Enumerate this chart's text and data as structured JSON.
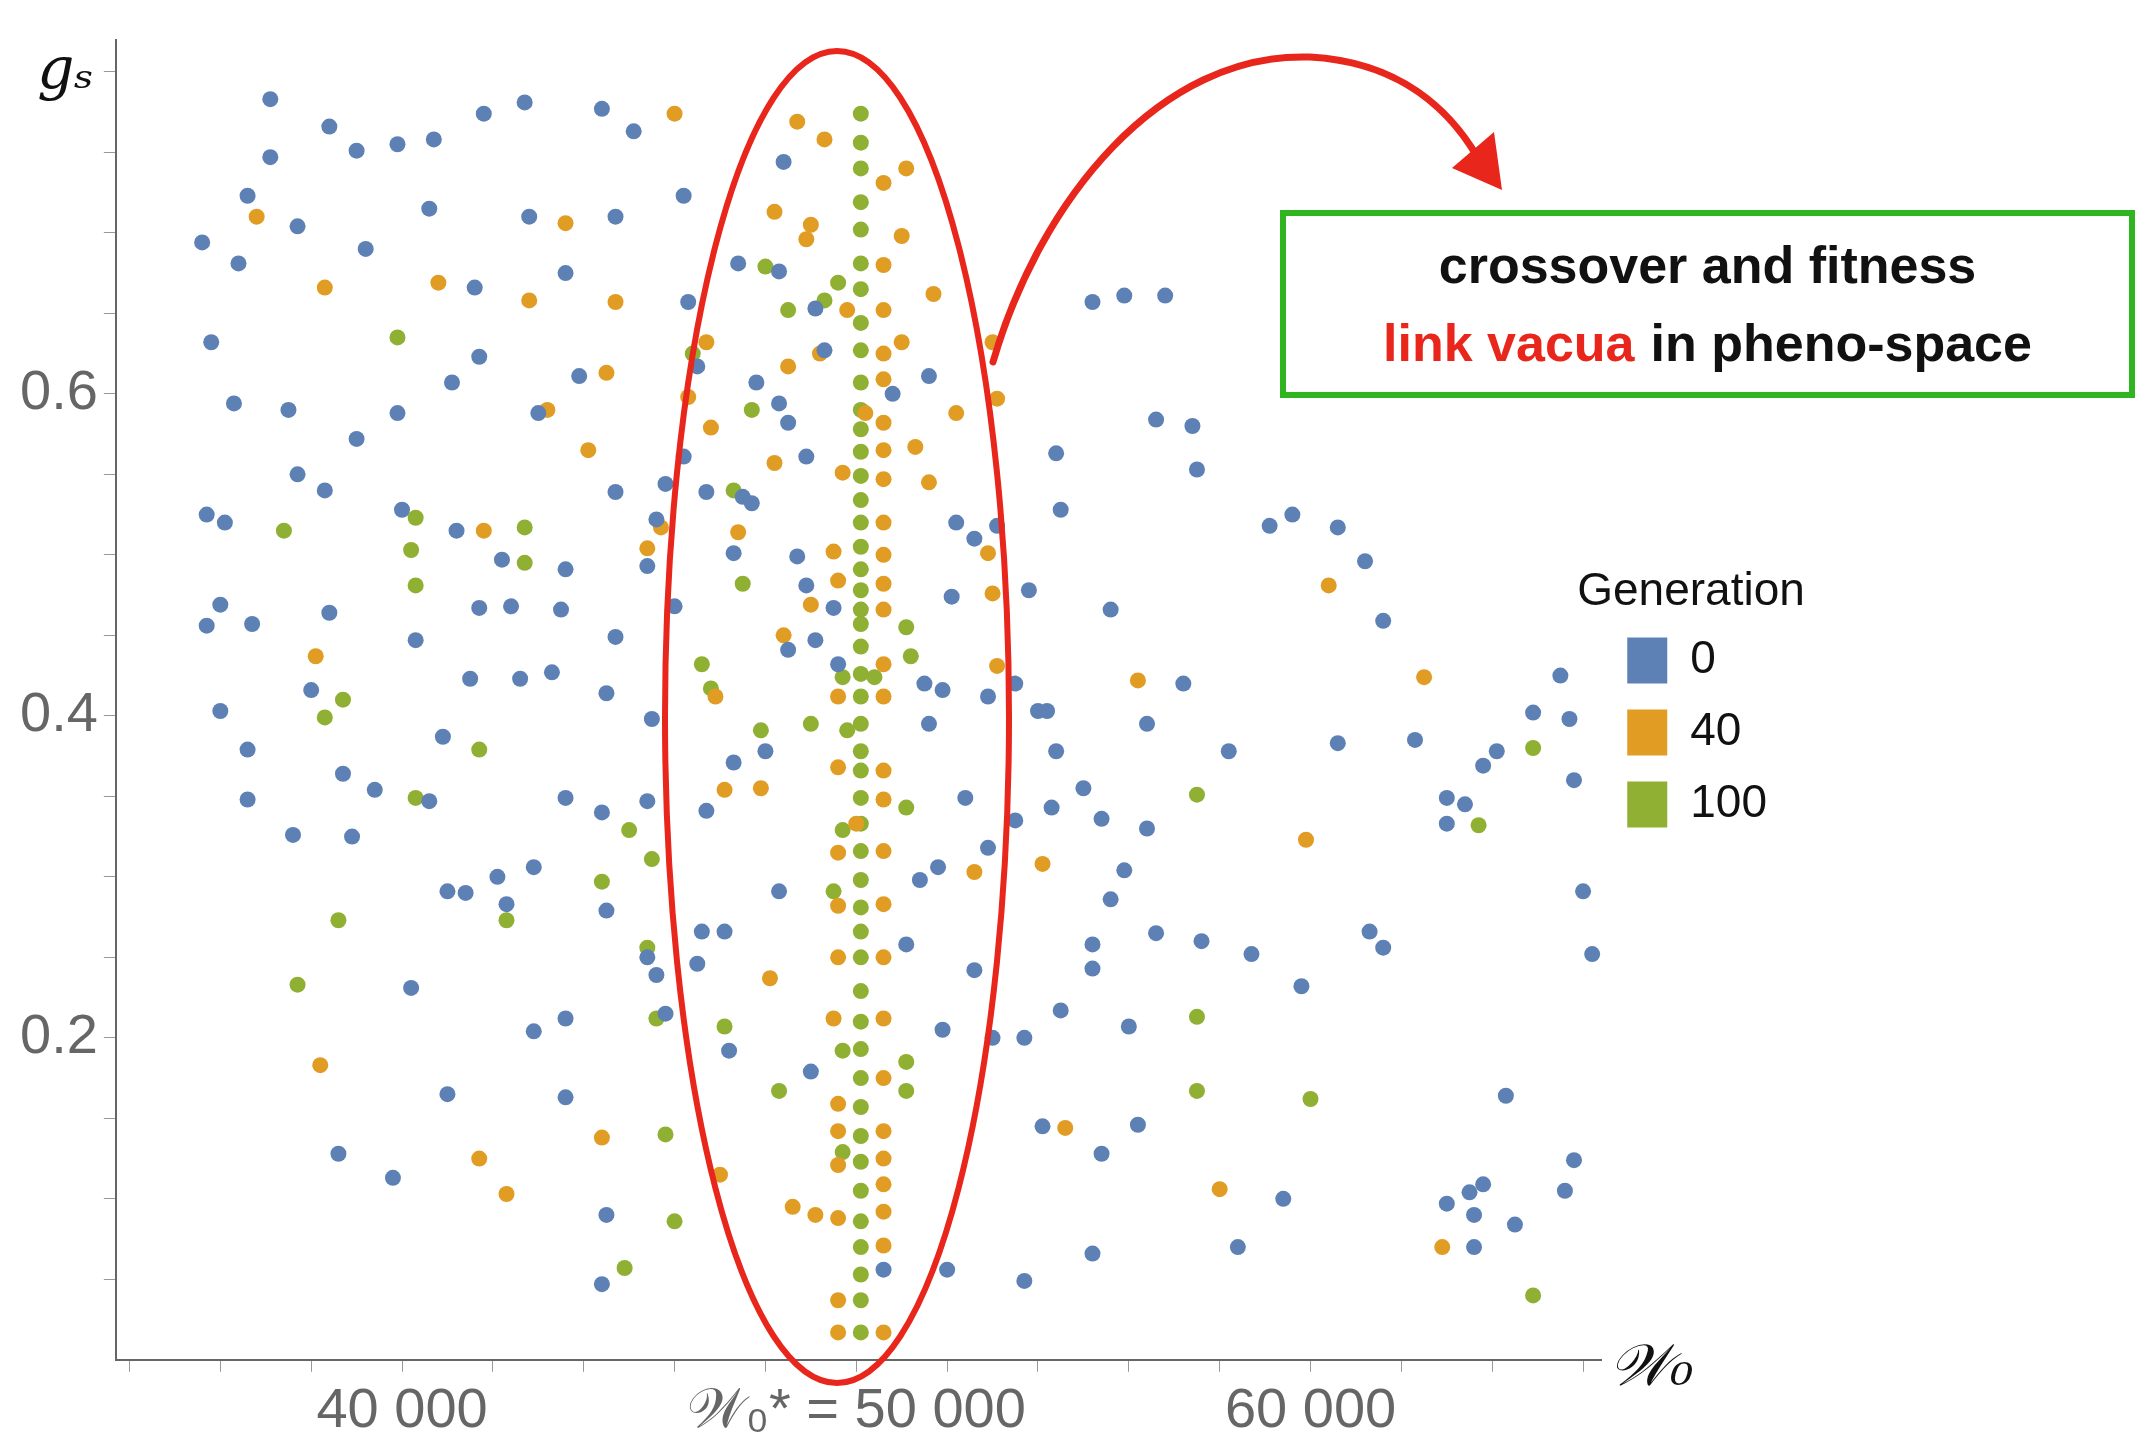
{
  "chart_data": {
    "type": "scatter",
    "xlabel": "𝒲₀",
    "ylabel": "gₛ",
    "legend_title": "Generation",
    "annotations": [
      "crossover and fitness",
      "link vacua",
      "in pheno-space"
    ],
    "xlim": [
      33700,
      66400
    ],
    "ylim": [
      0,
      0.82
    ],
    "xticks": [
      {
        "value": 34000,
        "label": null
      },
      {
        "value": 36000,
        "label": null
      },
      {
        "value": 38000,
        "label": null
      },
      {
        "value": 40000,
        "label": "40 000"
      },
      {
        "value": 42000,
        "label": null
      },
      {
        "value": 44000,
        "label": null
      },
      {
        "value": 46000,
        "label": null
      },
      {
        "value": 48000,
        "label": null
      },
      {
        "value": 50000,
        "label": "𝒲₀* = 50 000"
      },
      {
        "value": 52000,
        "label": null
      },
      {
        "value": 54000,
        "label": null
      },
      {
        "value": 56000,
        "label": null
      },
      {
        "value": 58000,
        "label": null
      },
      {
        "value": 60000,
        "label": "60 000"
      },
      {
        "value": 62000,
        "label": null
      },
      {
        "value": 64000,
        "label": null
      },
      {
        "value": 66000,
        "label": null
      }
    ],
    "yticks": [
      {
        "value": 0.05,
        "label": null
      },
      {
        "value": 0.1,
        "label": null
      },
      {
        "value": 0.15,
        "label": null
      },
      0.2,
      {
        "value": 0.25,
        "label": null
      },
      {
        "value": 0.3,
        "label": null
      },
      {
        "value": 0.35,
        "label": null
      },
      0.4,
      {
        "value": 0.45,
        "label": null
      },
      {
        "value": 0.5,
        "label": null
      },
      {
        "value": 0.55,
        "label": null
      },
      0.6,
      {
        "value": 0.65,
        "label": null
      },
      {
        "value": 0.7,
        "label": null
      },
      {
        "value": 0.75,
        "label": null
      },
      {
        "value": 0.8,
        "label": null
      }
    ],
    "legend": "right",
    "marker": "circle",
    "series": [
      {
        "name": "0",
        "color": "#5e81b5",
        "x": [
          35600,
          37100,
          38400,
          36600,
          37100,
          39000,
          39900,
          40700,
          41800,
          42700,
          44400,
          45100,
          46200,
          48400,
          35800,
          36400,
          37700,
          39200,
          40600,
          41600,
          42800,
          43600,
          44700,
          46300,
          47400,
          36300,
          37500,
          39000,
          39900,
          41100,
          41700,
          43000,
          43900,
          44700,
          45800,
          47500,
          35700,
          36100,
          37700,
          38300,
          40000,
          41200,
          42200,
          43600,
          45400,
          46700,
          35700,
          36000,
          36700,
          38400,
          40300,
          41700,
          42400,
          43500,
          44700,
          46000,
          36000,
          36600,
          38000,
          38700,
          39400,
          40900,
          41500,
          42600,
          43300,
          44500,
          45500,
          36600,
          37600,
          38900,
          40600,
          41000,
          42100,
          42900,
          43600,
          44400,
          45400,
          46700,
          40200,
          41400,
          42300,
          42900,
          43600,
          44500,
          45400,
          46600,
          38600,
          39800,
          41000,
          43600,
          44500,
          44400,
          45600,
          48500,
          48900,
          49500,
          51600,
          52600,
          53500,
          54400,
          55600,
          56400,
          57200,
          57500,
          58200,
          59100,
          59600,
          60600,
          61200,
          61600,
          62300,
          63000,
          63800,
          64900,
          65700,
          65800,
          66000,
          66200,
          65500,
          64100,
          63400,
          63000,
          60600,
          61300,
          61600,
          59800,
          58700,
          57600,
          56600,
          56000,
          55200,
          54500,
          53700,
          53000,
          51900,
          52600,
          51100,
          51400,
          51800,
          52400,
          52900,
          53500,
          54200,
          54400,
          55000,
          55400,
          55900,
          56400,
          55600,
          55200,
          55200,
          54100,
          55400,
          56200,
          58400,
          59400,
          63000,
          63500,
          63800,
          64300,
          63600,
          63600,
          65600,
          65800,
          64500,
          53700,
          52000,
          50600,
          54000,
          54300,
          56600,
          57400,
          56800,
          55900,
          55200,
          54500,
          52900,
          51900,
          51500,
          53800,
          52100,
          49600,
          49100,
          48000,
          47300,
          48300,
          47100,
          46500,
          45800,
          47200,
          49000,
          48300,
          47800,
          46500,
          46200,
          47700,
          48700,
          47300,
          45600,
          48300,
          49100,
          49300,
          48500,
          48900,
          50800,
          51600,
          52200,
          53100
        ],
        "values": [
          0.694,
          0.783,
          0.766,
          0.723,
          0.747,
          0.751,
          0.755,
          0.758,
          0.774,
          0.781,
          0.777,
          0.763,
          0.723,
          0.744,
          0.632,
          0.681,
          0.704,
          0.69,
          0.715,
          0.666,
          0.71,
          0.675,
          0.71,
          0.657,
          0.681,
          0.594,
          0.59,
          0.572,
          0.588,
          0.607,
          0.623,
          0.588,
          0.611,
          0.539,
          0.544,
          0.536,
          0.525,
          0.52,
          0.55,
          0.54,
          0.528,
          0.515,
          0.497,
          0.491,
          0.493,
          0.539,
          0.456,
          0.469,
          0.457,
          0.464,
          0.447,
          0.467,
          0.468,
          0.466,
          0.449,
          0.468,
          0.403,
          0.379,
          0.416,
          0.364,
          0.354,
          0.387,
          0.423,
          0.423,
          0.427,
          0.414,
          0.398,
          0.348,
          0.326,
          0.325,
          0.347,
          0.291,
          0.3,
          0.306,
          0.349,
          0.34,
          0.347,
          0.341,
          0.231,
          0.29,
          0.283,
          0.204,
          0.212,
          0.279,
          0.25,
          0.266,
          0.128,
          0.113,
          0.165,
          0.163,
          0.09,
          0.047,
          0.239,
          0.441,
          0.481,
          0.467,
          0.395,
          0.51,
          0.42,
          0.563,
          0.466,
          0.395,
          0.42,
          0.553,
          0.378,
          0.518,
          0.525,
          0.517,
          0.496,
          0.459,
          0.385,
          0.349,
          0.369,
          0.402,
          0.398,
          0.36,
          0.291,
          0.252,
          0.425,
          0.378,
          0.345,
          0.333,
          0.383,
          0.266,
          0.256,
          0.232,
          0.252,
          0.26,
          0.265,
          0.207,
          0.243,
          0.217,
          0.2,
          0.2,
          0.205,
          0.242,
          0.258,
          0.298,
          0.306,
          0.349,
          0.318,
          0.335,
          0.403,
          0.378,
          0.355,
          0.336,
          0.304,
          0.33,
          0.286,
          0.258,
          0.066,
          0.145,
          0.128,
          0.146,
          0.07,
          0.1,
          0.097,
          0.104,
          0.109,
          0.164,
          0.07,
          0.09,
          0.105,
          0.124,
          0.084,
          0.049,
          0.056,
          0.056,
          0.403,
          0.343,
          0.584,
          0.58,
          0.661,
          0.661,
          0.657,
          0.528,
          0.412,
          0.416,
          0.42,
          0.478,
          0.474,
          0.432,
          0.447,
          0.378,
          0.371,
          0.291,
          0.266,
          0.246,
          0.215,
          0.192,
          0.179,
          0.594,
          0.607,
          0.617,
          0.561,
          0.532,
          0.499,
          0.501,
          0.522,
          0.676,
          0.653,
          0.627,
          0.582,
          0.561,
          0.6,
          0.611,
          0.52,
          0.518
        ]
      },
      {
        "name": "40",
        "color": "#e19c24",
        "x": [
          46000,
          48700,
          49300,
          51100,
          36800,
          38300,
          43600,
          44700,
          40800,
          42800,
          48200,
          49000,
          48900,
          50600,
          51000,
          51700,
          50600,
          49800,
          50600,
          51000,
          53000,
          53100,
          52200,
          50600,
          48500,
          49200,
          50600,
          50200,
          50600,
          51300,
          51600,
          50600,
          50600,
          49700,
          48200,
          47400,
          46800,
          43200,
          44100,
          46700,
          46300,
          44500,
          45700,
          45400,
          50600,
          49500,
          50600,
          49600,
          50600,
          52900,
          53000,
          49000,
          48400,
          50600,
          50600,
          46900,
          50600,
          49600,
          53100,
          56200,
          49600,
          50600,
          50600,
          50000,
          47900,
          47100,
          49600,
          50600,
          49600,
          50600,
          50600,
          49600,
          48100,
          49500,
          50600,
          50600,
          49600,
          50600,
          50600,
          49600,
          49600,
          50600,
          50600,
          49600,
          49100,
          48600,
          50600,
          49600,
          50600,
          49600,
          38200,
          41700,
          42300,
          41800,
          44400,
          52600,
          54100,
          54600,
          58000,
          59900,
          60400,
          62500,
          62900,
          38100,
          47000
        ],
        "values": [
          0.774,
          0.769,
          0.758,
          0.74,
          0.71,
          0.666,
          0.706,
          0.657,
          0.669,
          0.658,
          0.713,
          0.705,
          0.696,
          0.731,
          0.698,
          0.662,
          0.68,
          0.652,
          0.652,
          0.632,
          0.632,
          0.597,
          0.588,
          0.625,
          0.617,
          0.625,
          0.609,
          0.588,
          0.582,
          0.567,
          0.545,
          0.565,
          0.547,
          0.551,
          0.557,
          0.514,
          0.579,
          0.59,
          0.565,
          0.632,
          0.598,
          0.613,
          0.517,
          0.504,
          0.52,
          0.502,
          0.5,
          0.484,
          0.482,
          0.501,
          0.476,
          0.469,
          0.45,
          0.466,
          0.432,
          0.412,
          0.412,
          0.412,
          0.431,
          0.422,
          0.368,
          0.366,
          0.348,
          0.333,
          0.355,
          0.354,
          0.315,
          0.316,
          0.282,
          0.283,
          0.25,
          0.25,
          0.237,
          0.212,
          0.212,
          0.175,
          0.159,
          0.142,
          0.125,
          0.142,
          0.121,
          0.109,
          0.092,
          0.088,
          0.09,
          0.095,
          0.071,
          0.037,
          0.017,
          0.017,
          0.183,
          0.125,
          0.103,
          0.515,
          0.138,
          0.303,
          0.308,
          0.144,
          0.106,
          0.323,
          0.481,
          0.424,
          0.07,
          0.437,
          0.115
        ]
      },
      {
        "name": "100",
        "color": "#8fb032",
        "x": [
          50100,
          50100,
          50100,
          50100,
          50100,
          50100,
          50100,
          50100,
          50100,
          50100,
          50100,
          50100,
          50100,
          50100,
          50100,
          50100,
          50100,
          50100,
          50100,
          50100,
          50100,
          50100,
          50100,
          50100,
          50100,
          50100,
          50100,
          50100,
          50100,
          50100,
          50100,
          50100,
          50100,
          50100,
          50100,
          50100,
          50100,
          50100,
          50100,
          50100,
          50100,
          50100,
          50100,
          50100,
          50100,
          50100,
          50100,
          49600,
          49300,
          48500,
          48000,
          46400,
          47700,
          47300,
          47500,
          46600,
          46800,
          47900,
          49000,
          49700,
          51100,
          51200,
          50400,
          49800,
          51100,
          49700,
          49500,
          49700,
          51100,
          51100,
          49700,
          48300,
          47100,
          46000,
          44900,
          45400,
          45500,
          38600,
          38300,
          37700,
          37400,
          38700,
          40300,
          40200,
          40300,
          40300,
          41700,
          42700,
          42700,
          42300,
          44400,
          45000,
          45600,
          45800,
          57500,
          57500,
          57500,
          60000,
          63700,
          64900,
          64900,
          39900
        ],
        "values": [
          0.774,
          0.756,
          0.74,
          0.719,
          0.702,
          0.681,
          0.665,
          0.644,
          0.627,
          0.607,
          0.59,
          0.578,
          0.564,
          0.549,
          0.534,
          0.52,
          0.505,
          0.491,
          0.478,
          0.466,
          0.457,
          0.443,
          0.426,
          0.412,
          0.395,
          0.378,
          0.366,
          0.349,
          0.333,
          0.316,
          0.298,
          0.281,
          0.266,
          0.25,
          0.229,
          0.21,
          0.193,
          0.175,
          0.157,
          0.139,
          0.123,
          0.105,
          0.086,
          0.07,
          0.053,
          0.037,
          0.017,
          0.669,
          0.658,
          0.652,
          0.679,
          0.625,
          0.59,
          0.54,
          0.482,
          0.432,
          0.417,
          0.391,
          0.395,
          0.424,
          0.455,
          0.437,
          0.424,
          0.391,
          0.343,
          0.329,
          0.291,
          0.192,
          0.185,
          0.167,
          0.129,
          0.167,
          0.207,
          0.086,
          0.057,
          0.256,
          0.311,
          0.273,
          0.399,
          0.233,
          0.515,
          0.41,
          0.523,
          0.503,
          0.481,
          0.349,
          0.379,
          0.517,
          0.495,
          0.273,
          0.297,
          0.329,
          0.212,
          0.14,
          0.351,
          0.213,
          0.167,
          0.162,
          0.332,
          0.38,
          0.04,
          0.635
        ]
      }
    ]
  }
}
